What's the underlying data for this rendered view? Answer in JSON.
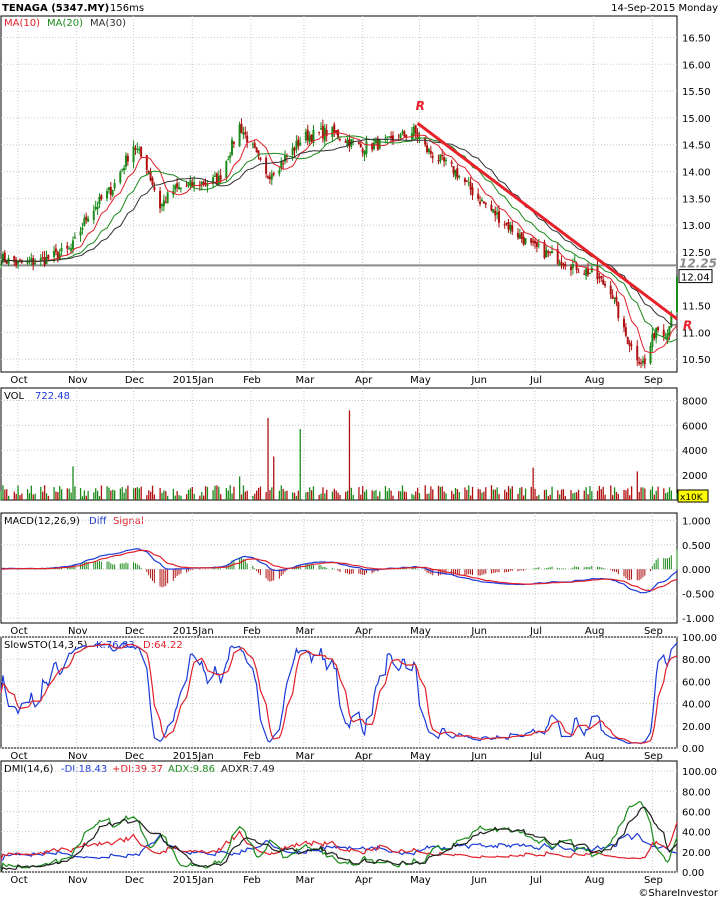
{
  "header": {
    "symbol": "TENAGA (5347.MY)",
    "interval": "156ms",
    "date": "14-Sep-2015 Monday"
  },
  "footer": {
    "credit": "©ShareInvestor"
  },
  "colors": {
    "ma10": "#e0202a",
    "ma20": "#1a8a1a",
    "ma30": "#303030",
    "up": "#1a8a1a",
    "down": "#b01010",
    "trend": "#e8202a",
    "ref": "#8a8a8a",
    "plus": "#e0202a",
    "minus": "#1a3ad8",
    "k": "#1a3ad8",
    "d": "#e0202a",
    "diff": "#1a3ad8",
    "signal": "#e0202a",
    "adx": "#1a8a1a",
    "adxr": "#202020"
  },
  "x_labels": [
    "Oct",
    "Nov",
    "Dec",
    "2015Jan",
    "Feb",
    "Mar",
    "Apr",
    "May",
    "Jun",
    "Jul",
    "Aug",
    "Sep"
  ],
  "chart_data": [
    {
      "type": "candlestick",
      "panel": "price",
      "legend": [
        "MA(10)",
        "MA(20)",
        "MA(30)"
      ],
      "ylim": [
        10.0,
        16.9
      ],
      "yticks": [
        10.5,
        11.0,
        11.5,
        12.0,
        12.5,
        13.0,
        13.5,
        14.0,
        14.5,
        15.0,
        15.5,
        16.0,
        16.5
      ],
      "ytick_labels": [
        "10.50",
        "11.00",
        "11.50",
        "12.00",
        "12.50",
        "13.00",
        "13.50",
        "14.00",
        "14.50",
        "15.00",
        "15.50",
        "16.00",
        "16.50"
      ],
      "last_close": 12.04,
      "last_label": "12.04",
      "reference_level": 12.25,
      "reference_label": "12.25",
      "annotations": [
        "R",
        "R"
      ],
      "series_anchors": {
        "x": [
          "2014-09-22",
          "2014-10-01",
          "2014-10-15",
          "2014-10-29",
          "2014-11-07",
          "2014-11-20",
          "2014-12-01",
          "2014-12-08",
          "2014-12-15",
          "2014-12-22",
          "2015-01-01",
          "2015-01-15",
          "2015-01-26",
          "2015-02-01",
          "2015-02-09",
          "2015-02-18",
          "2015-03-01",
          "2015-03-15",
          "2015-03-31",
          "2015-04-15",
          "2015-04-28",
          "2015-05-05",
          "2015-05-20",
          "2015-06-01",
          "2015-06-15",
          "2015-06-29",
          "2015-07-15",
          "2015-07-31",
          "2015-08-10",
          "2015-08-17",
          "2015-08-24",
          "2015-08-28",
          "2015-09-03",
          "2015-09-09",
          "2015-09-14"
        ],
        "close": [
          12.38,
          12.28,
          12.35,
          12.55,
          13.2,
          13.7,
          14.5,
          14.1,
          13.35,
          13.65,
          13.75,
          13.85,
          14.85,
          14.5,
          13.9,
          14.2,
          14.65,
          14.75,
          14.45,
          14.55,
          14.75,
          14.4,
          14.0,
          13.5,
          13.05,
          12.6,
          12.35,
          12.1,
          11.8,
          11.0,
          10.55,
          10.4,
          11.1,
          11.0,
          12.04
        ]
      }
    },
    {
      "type": "bar",
      "panel": "volume",
      "label": "VOL",
      "last_value": 722.48,
      "last_label": "722.48",
      "unit": "x10K",
      "ylim": [
        0,
        9000
      ],
      "yticks": [
        2000,
        4000,
        6000,
        8000
      ],
      "spikes": [
        {
          "x": "2014-10-30",
          "value": 2700
        },
        {
          "x": "2015-01-26",
          "value": 1900
        },
        {
          "x": "2015-02-10",
          "value": 6600
        },
        {
          "x": "2015-02-13",
          "value": 3500
        },
        {
          "x": "2015-02-27",
          "value": 5700
        },
        {
          "x": "2015-03-25",
          "value": 7200
        },
        {
          "x": "2015-06-30",
          "value": 2600
        },
        {
          "x": "2015-08-24",
          "value": 2300
        }
      ]
    },
    {
      "type": "line",
      "panel": "macd",
      "label": "MACD(12,26,9)",
      "series": [
        {
          "name": "Diff"
        },
        {
          "name": "Signal"
        }
      ],
      "ylim": [
        -1.1,
        1.15
      ],
      "yticks": [
        -1.0,
        -0.5,
        0.0,
        0.5,
        1.0
      ],
      "ytick_labels": [
        "-1.000",
        "-0.500",
        "0.000",
        "0.500",
        "1.000"
      ]
    },
    {
      "type": "line",
      "panel": "stochastic",
      "label": "SlowSTO(14,3,5)",
      "series": [
        {
          "name": "K",
          "last": 76.83,
          "label": "K:76.83"
        },
        {
          "name": "D",
          "last": 64.22,
          "label": "D:64.22"
        }
      ],
      "ylim": [
        0,
        100
      ],
      "yticks": [
        0,
        20,
        40,
        60,
        80,
        100
      ],
      "ytick_labels": [
        "0.00",
        "20.00",
        "40.00",
        "60.00",
        "80.00",
        "100.00"
      ]
    },
    {
      "type": "line",
      "panel": "dmi",
      "label": "DMI(14,6)",
      "series": [
        {
          "name": "-DI",
          "last": 18.43,
          "label": "-DI:18.43"
        },
        {
          "name": "+DI",
          "last": 39.37,
          "label": "+DI:39.37"
        },
        {
          "name": "ADX",
          "last": 9.86,
          "label": "ADX:9.86"
        },
        {
          "name": "ADXR",
          "last": 7.49,
          "label": "ADXR:7.49"
        }
      ],
      "ylim": [
        0,
        110
      ],
      "yticks": [
        0,
        20,
        40,
        60,
        80,
        100
      ],
      "ytick_labels": [
        "0.00",
        "20.00",
        "40.00",
        "60.00",
        "80.00",
        "100.00"
      ]
    }
  ]
}
